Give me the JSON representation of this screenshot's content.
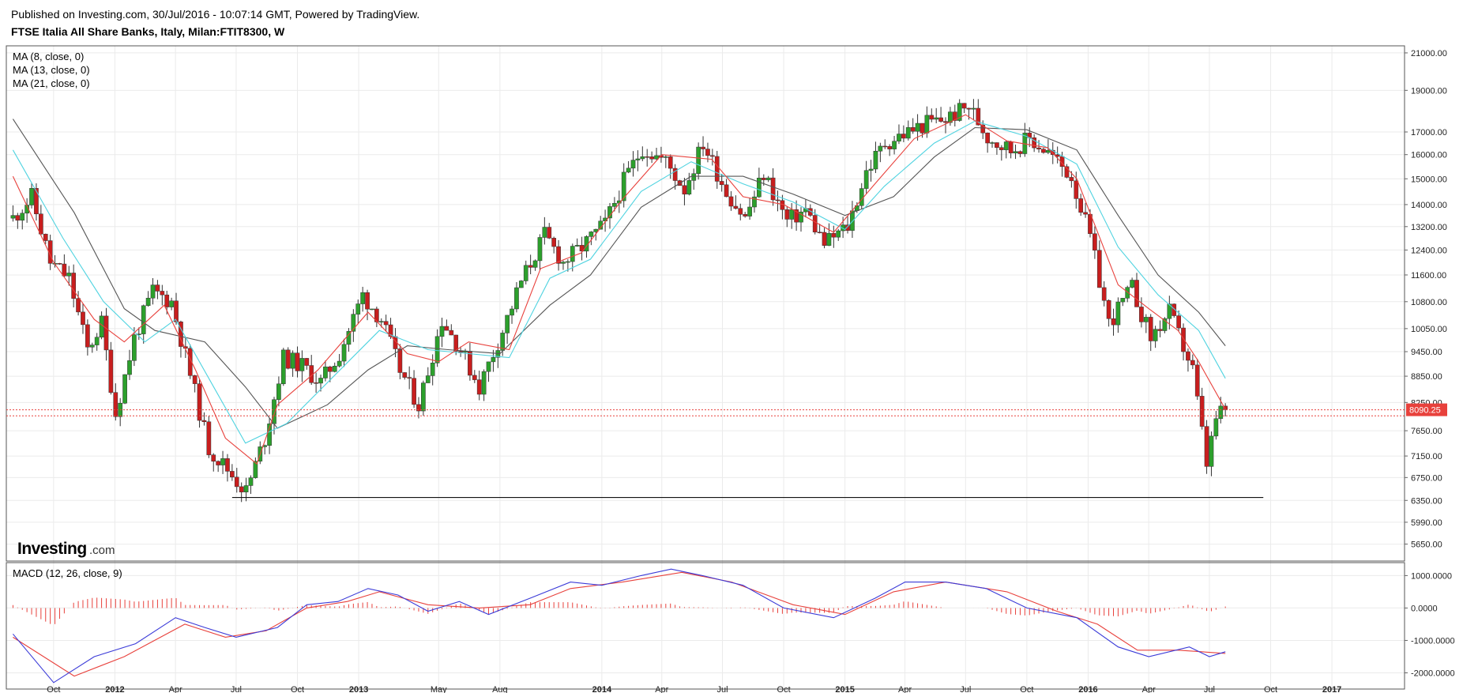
{
  "header": {
    "published": "Published on Investing.com, 30/Jul/2016 - 10:07:14 GMT, Powered by TradingView.",
    "symbol": "FTSE Italia All Share Banks, Italy, Milan:FTIT8300, W"
  },
  "logo": {
    "brand": "Investing",
    "suffix": ".com"
  },
  "colors": {
    "up": "#2ca02c",
    "down": "#c81e1e",
    "ma8": "#e8413c",
    "ma13": "#4fd3e0",
    "ma21": "#555555",
    "macd": "#3b3bd8",
    "signal": "#e8413c",
    "hist": "#e8413c",
    "price_tag": "#e8413c"
  },
  "chart_data": [
    {
      "type": "candlestick",
      "title": "FTSE Italia All Share Banks, Italy, Milan:FTIT8300, W",
      "legend": [
        "MA (8, close, 0)",
        "MA (13, close, 0)",
        "MA (21, close, 0)"
      ],
      "legend_placement": "top-left",
      "y_scale": "log",
      "ylim": [
        5400,
        21400
      ],
      "y_ticks": [
        5650,
        5990,
        6350,
        6750,
        7150,
        7650,
        8250,
        8850,
        9450,
        10050,
        10800,
        11600,
        12400,
        13200,
        14000,
        15000,
        16000,
        17000,
        19000,
        21000
      ],
      "y_tick_labels": [
        "5650.00",
        "5990.00",
        "6350.00",
        "6750.00",
        "7150.00",
        "7650.00",
        "8250.00",
        "8850.00",
        "9450.00",
        "10050.00",
        "10800.00",
        "11600.00",
        "12400.00",
        "13200.00",
        "14000.00",
        "15000.00",
        "16000.00",
        "17000.00",
        "19000.00",
        "21000.00"
      ],
      "x_ticks": [
        "2011-10-01",
        "2012-01-01",
        "2012-04-01",
        "2012-07-01",
        "2012-10-01",
        "2013-01-01",
        "2013-05-01",
        "2013-08-01",
        "2014-01-01",
        "2014-04-01",
        "2014-07-01",
        "2014-10-01",
        "2015-01-01",
        "2015-04-01",
        "2015-07-01",
        "2015-10-01",
        "2016-01-01",
        "2016-04-01",
        "2016-07-01",
        "2016-10-01",
        "2017-01-01"
      ],
      "x_tick_labels": [
        "Oct",
        "2012",
        "Apr",
        "Jul",
        "Oct",
        "2013",
        "May",
        "Aug",
        "2014",
        "Apr",
        "Jul",
        "Oct",
        "2015",
        "Apr",
        "Jul",
        "Oct",
        "2016",
        "Apr",
        "Jul",
        "Oct",
        "2017"
      ],
      "last_price": "8090.25",
      "last_price_value": 8090.25,
      "price_lines": [
        8090.25,
        7960
      ],
      "support_line": {
        "value": 6400,
        "from": "2012-06-25",
        "to": "2016-09-20"
      },
      "close_series": [
        {
          "x": "2011-08-01",
          "c": 13500
        },
        {
          "x": "2011-08-29",
          "c": 14300
        },
        {
          "x": "2011-09-26",
          "c": 12000
        },
        {
          "x": "2011-10-24",
          "c": 11500
        },
        {
          "x": "2011-11-21",
          "c": 9500
        },
        {
          "x": "2011-12-12",
          "c": 10200
        },
        {
          "x": "2012-01-02",
          "c": 8000
        },
        {
          "x": "2012-01-30",
          "c": 9800
        },
        {
          "x": "2012-02-27",
          "c": 11100
        },
        {
          "x": "2012-03-26",
          "c": 10800
        },
        {
          "x": "2012-04-23",
          "c": 8900
        },
        {
          "x": "2012-05-21",
          "c": 7300
        },
        {
          "x": "2012-06-18",
          "c": 6900
        },
        {
          "x": "2012-07-16",
          "c": 6500
        },
        {
          "x": "2012-08-13",
          "c": 7500
        },
        {
          "x": "2012-09-10",
          "c": 9300
        },
        {
          "x": "2012-10-08",
          "c": 9100
        },
        {
          "x": "2012-11-05",
          "c": 8700
        },
        {
          "x": "2012-12-03",
          "c": 9400
        },
        {
          "x": "2013-01-07",
          "c": 11000
        },
        {
          "x": "2013-02-04",
          "c": 10300
        },
        {
          "x": "2013-03-04",
          "c": 9000
        },
        {
          "x": "2013-04-01",
          "c": 8200
        },
        {
          "x": "2013-05-06",
          "c": 10300
        },
        {
          "x": "2013-06-03",
          "c": 9500
        },
        {
          "x": "2013-07-01",
          "c": 8600
        },
        {
          "x": "2013-08-05",
          "c": 10000
        },
        {
          "x": "2013-09-02",
          "c": 11400
        },
        {
          "x": "2013-10-07",
          "c": 12900
        },
        {
          "x": "2013-11-04",
          "c": 12000
        },
        {
          "x": "2013-12-02",
          "c": 12500
        },
        {
          "x": "2014-01-06",
          "c": 13300
        },
        {
          "x": "2014-02-03",
          "c": 14900
        },
        {
          "x": "2014-03-03",
          "c": 16300
        },
        {
          "x": "2014-04-07",
          "c": 15700
        },
        {
          "x": "2014-05-05",
          "c": 14600
        },
        {
          "x": "2014-06-02",
          "c": 16500
        },
        {
          "x": "2014-07-07",
          "c": 14500
        },
        {
          "x": "2014-08-04",
          "c": 13500
        },
        {
          "x": "2014-09-01",
          "c": 15200
        },
        {
          "x": "2014-10-06",
          "c": 13400
        },
        {
          "x": "2014-11-03",
          "c": 13800
        },
        {
          "x": "2014-12-01",
          "c": 12600
        },
        {
          "x": "2015-01-05",
          "c": 13200
        },
        {
          "x": "2015-02-02",
          "c": 15300
        },
        {
          "x": "2015-03-02",
          "c": 16500
        },
        {
          "x": "2015-04-06",
          "c": 17000
        },
        {
          "x": "2015-05-04",
          "c": 17400
        },
        {
          "x": "2015-06-01",
          "c": 17600
        },
        {
          "x": "2015-07-06",
          "c": 18200
        },
        {
          "x": "2015-08-03",
          "c": 16800
        },
        {
          "x": "2015-09-07",
          "c": 16200
        },
        {
          "x": "2015-10-05",
          "c": 16700
        },
        {
          "x": "2015-11-02",
          "c": 16100
        },
        {
          "x": "2015-12-07",
          "c": 15100
        },
        {
          "x": "2016-01-04",
          "c": 12800
        },
        {
          "x": "2016-02-01",
          "c": 10200
        },
        {
          "x": "2016-03-07",
          "c": 11200
        },
        {
          "x": "2016-04-04",
          "c": 9800
        },
        {
          "x": "2016-05-02",
          "c": 10500
        },
        {
          "x": "2016-06-06",
          "c": 9000
        },
        {
          "x": "2016-06-27",
          "c": 7000
        },
        {
          "x": "2016-07-11",
          "c": 7900
        },
        {
          "x": "2016-07-25",
          "c": 8090
        }
      ],
      "ma8": [
        {
          "x": "2011-08-01",
          "v": 15100
        },
        {
          "x": "2011-10-01",
          "v": 12000
        },
        {
          "x": "2011-12-01",
          "v": 10300
        },
        {
          "x": "2012-01-15",
          "v": 9700
        },
        {
          "x": "2012-03-15",
          "v": 10700
        },
        {
          "x": "2012-05-01",
          "v": 9000
        },
        {
          "x": "2012-06-15",
          "v": 7500
        },
        {
          "x": "2012-08-01",
          "v": 7000
        },
        {
          "x": "2012-09-01",
          "v": 8200
        },
        {
          "x": "2012-11-01",
          "v": 9000
        },
        {
          "x": "2013-01-15",
          "v": 10500
        },
        {
          "x": "2013-03-15",
          "v": 9400
        },
        {
          "x": "2013-05-01",
          "v": 9200
        },
        {
          "x": "2013-06-15",
          "v": 9700
        },
        {
          "x": "2013-08-15",
          "v": 9500
        },
        {
          "x": "2013-10-01",
          "v": 11800
        },
        {
          "x": "2013-12-01",
          "v": 12300
        },
        {
          "x": "2014-02-01",
          "v": 14200
        },
        {
          "x": "2014-04-01",
          "v": 16000
        },
        {
          "x": "2014-06-15",
          "v": 15800
        },
        {
          "x": "2014-08-01",
          "v": 14300
        },
        {
          "x": "2014-10-01",
          "v": 14000
        },
        {
          "x": "2014-12-15",
          "v": 13000
        },
        {
          "x": "2015-02-15",
          "v": 14800
        },
        {
          "x": "2015-04-15",
          "v": 16700
        },
        {
          "x": "2015-07-01",
          "v": 17800
        },
        {
          "x": "2015-09-01",
          "v": 16600
        },
        {
          "x": "2015-11-01",
          "v": 16300
        },
        {
          "x": "2015-12-15",
          "v": 15000
        },
        {
          "x": "2016-02-15",
          "v": 11300
        },
        {
          "x": "2016-04-01",
          "v": 10600
        },
        {
          "x": "2016-05-15",
          "v": 10000
        },
        {
          "x": "2016-06-15",
          "v": 9200
        },
        {
          "x": "2016-07-25",
          "v": 8100
        }
      ],
      "ma13": [
        {
          "x": "2011-08-01",
          "v": 16200
        },
        {
          "x": "2011-10-15",
          "v": 12800
        },
        {
          "x": "2011-12-15",
          "v": 10800
        },
        {
          "x": "2012-02-15",
          "v": 9700
        },
        {
          "x": "2012-04-01",
          "v": 10300
        },
        {
          "x": "2012-06-01",
          "v": 8500
        },
        {
          "x": "2012-07-15",
          "v": 7400
        },
        {
          "x": "2012-09-15",
          "v": 7800
        },
        {
          "x": "2012-11-15",
          "v": 8700
        },
        {
          "x": "2013-02-01",
          "v": 10000
        },
        {
          "x": "2013-04-15",
          "v": 9500
        },
        {
          "x": "2013-06-15",
          "v": 9400
        },
        {
          "x": "2013-08-15",
          "v": 9300
        },
        {
          "x": "2013-10-15",
          "v": 11500
        },
        {
          "x": "2013-12-15",
          "v": 12100
        },
        {
          "x": "2014-03-01",
          "v": 14500
        },
        {
          "x": "2014-05-15",
          "v": 15700
        },
        {
          "x": "2014-08-01",
          "v": 14800
        },
        {
          "x": "2014-10-15",
          "v": 14100
        },
        {
          "x": "2015-01-01",
          "v": 13100
        },
        {
          "x": "2015-03-01",
          "v": 14700
        },
        {
          "x": "2015-05-15",
          "v": 16500
        },
        {
          "x": "2015-07-15",
          "v": 17500
        },
        {
          "x": "2015-10-01",
          "v": 16800
        },
        {
          "x": "2015-12-15",
          "v": 15600
        },
        {
          "x": "2016-02-15",
          "v": 12500
        },
        {
          "x": "2016-04-15",
          "v": 11000
        },
        {
          "x": "2016-06-15",
          "v": 10000
        },
        {
          "x": "2016-07-25",
          "v": 8800
        }
      ],
      "ma21": [
        {
          "x": "2011-08-01",
          "v": 17600
        },
        {
          "x": "2011-11-01",
          "v": 13700
        },
        {
          "x": "2012-01-15",
          "v": 10600
        },
        {
          "x": "2012-03-01",
          "v": 10000
        },
        {
          "x": "2012-05-15",
          "v": 9700
        },
        {
          "x": "2012-07-15",
          "v": 8600
        },
        {
          "x": "2012-09-01",
          "v": 7700
        },
        {
          "x": "2012-11-15",
          "v": 8200
        },
        {
          "x": "2013-01-15",
          "v": 9000
        },
        {
          "x": "2013-03-15",
          "v": 9600
        },
        {
          "x": "2013-05-15",
          "v": 9500
        },
        {
          "x": "2013-08-01",
          "v": 9400
        },
        {
          "x": "2013-10-15",
          "v": 10700
        },
        {
          "x": "2013-12-15",
          "v": 11600
        },
        {
          "x": "2014-03-01",
          "v": 13900
        },
        {
          "x": "2014-05-15",
          "v": 15100
        },
        {
          "x": "2014-08-01",
          "v": 15100
        },
        {
          "x": "2014-10-15",
          "v": 14400
        },
        {
          "x": "2015-01-01",
          "v": 13600
        },
        {
          "x": "2015-03-15",
          "v": 14300
        },
        {
          "x": "2015-05-15",
          "v": 15900
        },
        {
          "x": "2015-07-15",
          "v": 17200
        },
        {
          "x": "2015-10-01",
          "v": 17100
        },
        {
          "x": "2015-12-15",
          "v": 16200
        },
        {
          "x": "2016-02-15",
          "v": 13600
        },
        {
          "x": "2016-04-15",
          "v": 11600
        },
        {
          "x": "2016-06-15",
          "v": 10500
        },
        {
          "x": "2016-07-25",
          "v": 9600
        }
      ]
    },
    {
      "type": "line",
      "legend": [
        "MACD (12, 26, close, 9)"
      ],
      "ylim": [
        -2500,
        1400
      ],
      "y_ticks": [
        1000,
        0,
        -1000,
        -2000
      ],
      "y_tick_labels": [
        "1000.0000",
        "0.0000",
        "-1000.0000",
        "-2000.0000"
      ],
      "macd": [
        {
          "x": "2011-08-01",
          "v": -800
        },
        {
          "x": "2011-10-01",
          "v": -2300
        },
        {
          "x": "2011-12-01",
          "v": -1500
        },
        {
          "x": "2012-02-01",
          "v": -1100
        },
        {
          "x": "2012-04-01",
          "v": -300
        },
        {
          "x": "2012-05-15",
          "v": -600
        },
        {
          "x": "2012-07-01",
          "v": -900
        },
        {
          "x": "2012-09-01",
          "v": -600
        },
        {
          "x": "2012-10-15",
          "v": 100
        },
        {
          "x": "2012-12-01",
          "v": 200
        },
        {
          "x": "2013-01-15",
          "v": 600
        },
        {
          "x": "2013-03-01",
          "v": 400
        },
        {
          "x": "2013-04-15",
          "v": -100
        },
        {
          "x": "2013-06-01",
          "v": 200
        },
        {
          "x": "2013-07-15",
          "v": -200
        },
        {
          "x": "2013-09-15",
          "v": 300
        },
        {
          "x": "2013-11-15",
          "v": 800
        },
        {
          "x": "2014-01-01",
          "v": 700
        },
        {
          "x": "2014-03-01",
          "v": 1000
        },
        {
          "x": "2014-04-15",
          "v": 1200
        },
        {
          "x": "2014-06-01",
          "v": 1000
        },
        {
          "x": "2014-08-01",
          "v": 700
        },
        {
          "x": "2014-10-01",
          "v": 0
        },
        {
          "x": "2014-12-15",
          "v": -300
        },
        {
          "x": "2015-02-15",
          "v": 300
        },
        {
          "x": "2015-04-01",
          "v": 800
        },
        {
          "x": "2015-06-01",
          "v": 800
        },
        {
          "x": "2015-08-01",
          "v": 600
        },
        {
          "x": "2015-10-01",
          "v": 0
        },
        {
          "x": "2015-12-15",
          "v": -300
        },
        {
          "x": "2016-02-15",
          "v": -1200
        },
        {
          "x": "2016-04-01",
          "v": -1500
        },
        {
          "x": "2016-06-01",
          "v": -1200
        },
        {
          "x": "2016-07-01",
          "v": -1500
        },
        {
          "x": "2016-07-25",
          "v": -1350
        }
      ],
      "signal": [
        {
          "x": "2011-08-01",
          "v": -900
        },
        {
          "x": "2011-11-01",
          "v": -2100
        },
        {
          "x": "2012-01-15",
          "v": -1500
        },
        {
          "x": "2012-04-15",
          "v": -500
        },
        {
          "x": "2012-06-15",
          "v": -900
        },
        {
          "x": "2012-08-15",
          "v": -700
        },
        {
          "x": "2012-10-15",
          "v": 0
        },
        {
          "x": "2012-12-15",
          "v": 200
        },
        {
          "x": "2013-02-01",
          "v": 500
        },
        {
          "x": "2013-04-15",
          "v": 100
        },
        {
          "x": "2013-07-01",
          "v": 0
        },
        {
          "x": "2013-09-15",
          "v": 100
        },
        {
          "x": "2013-11-15",
          "v": 600
        },
        {
          "x": "2014-02-01",
          "v": 800
        },
        {
          "x": "2014-05-01",
          "v": 1100
        },
        {
          "x": "2014-07-15",
          "v": 800
        },
        {
          "x": "2014-10-15",
          "v": 100
        },
        {
          "x": "2015-01-01",
          "v": -200
        },
        {
          "x": "2015-03-15",
          "v": 500
        },
        {
          "x": "2015-06-01",
          "v": 800
        },
        {
          "x": "2015-09-01",
          "v": 500
        },
        {
          "x": "2015-11-15",
          "v": -100
        },
        {
          "x": "2016-01-15",
          "v": -500
        },
        {
          "x": "2016-03-15",
          "v": -1300
        },
        {
          "x": "2016-05-15",
          "v": -1300
        },
        {
          "x": "2016-07-25",
          "v": -1400
        }
      ]
    }
  ]
}
